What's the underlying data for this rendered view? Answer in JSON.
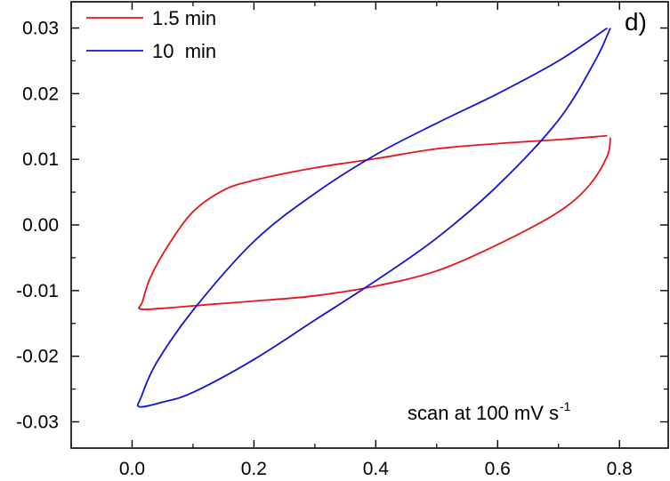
{
  "chart_data": {
    "type": "line",
    "panel_label": "d)",
    "annotation": {
      "text": "scan at 100 mV s",
      "superscript": "-1"
    },
    "xlim": [
      -0.1,
      0.88
    ],
    "ylim": [
      -0.034,
      0.034
    ],
    "x_ticks": [
      {
        "value": 0.0,
        "label": "0.0"
      },
      {
        "value": 0.2,
        "label": "0.2"
      },
      {
        "value": 0.4,
        "label": "0.4"
      },
      {
        "value": 0.6,
        "label": "0.6"
      },
      {
        "value": 0.8,
        "label": "0.8"
      }
    ],
    "y_ticks": [
      {
        "value": 0.03,
        "label": "0.03"
      },
      {
        "value": 0.02,
        "label": "0.02"
      },
      {
        "value": 0.01,
        "label": "0.01"
      },
      {
        "value": 0.0,
        "label": "0.00"
      },
      {
        "value": -0.01,
        "label": "-0.01"
      },
      {
        "value": -0.02,
        "label": "-0.02"
      },
      {
        "value": -0.03,
        "label": "-0.03"
      }
    ],
    "grid": false,
    "legend_position": "top-left",
    "series": [
      {
        "name": "1.5 min",
        "color": "#e8141c",
        "points": [
          [
            0.78,
            0.0136
          ],
          [
            0.7,
            0.013
          ],
          [
            0.6,
            0.0124
          ],
          [
            0.5,
            0.0116
          ],
          [
            0.4,
            0.0101
          ],
          [
            0.3,
            0.0087
          ],
          [
            0.2,
            0.0068
          ],
          [
            0.15,
            0.0053
          ],
          [
            0.1,
            0.002
          ],
          [
            0.06,
            -0.003
          ],
          [
            0.03,
            -0.008
          ],
          [
            0.017,
            -0.0117
          ],
          [
            0.013,
            -0.0128
          ],
          [
            0.05,
            -0.0127
          ],
          [
            0.13,
            -0.0121
          ],
          [
            0.2,
            -0.0116
          ],
          [
            0.3,
            -0.0108
          ],
          [
            0.4,
            -0.0093
          ],
          [
            0.5,
            -0.007
          ],
          [
            0.6,
            -0.003
          ],
          [
            0.7,
            0.002
          ],
          [
            0.75,
            0.006
          ],
          [
            0.78,
            0.0105
          ],
          [
            0.785,
            0.0133
          ]
        ]
      },
      {
        "name": "10  min",
        "color": "#1414d2",
        "points": [
          [
            0.78,
            0.03
          ],
          [
            0.7,
            0.025
          ],
          [
            0.6,
            0.02
          ],
          [
            0.5,
            0.0155
          ],
          [
            0.4,
            0.0107
          ],
          [
            0.3,
            0.0048
          ],
          [
            0.2,
            -0.0025
          ],
          [
            0.1,
            -0.013
          ],
          [
            0.04,
            -0.021
          ],
          [
            0.015,
            -0.0262
          ],
          [
            0.012,
            -0.0277
          ],
          [
            0.05,
            -0.027
          ],
          [
            0.1,
            -0.0255
          ],
          [
            0.2,
            -0.0205
          ],
          [
            0.3,
            -0.0145
          ],
          [
            0.4,
            -0.0085
          ],
          [
            0.5,
            -0.002
          ],
          [
            0.6,
            0.006
          ],
          [
            0.7,
            0.016
          ],
          [
            0.76,
            0.025
          ],
          [
            0.785,
            0.03
          ]
        ]
      }
    ]
  }
}
